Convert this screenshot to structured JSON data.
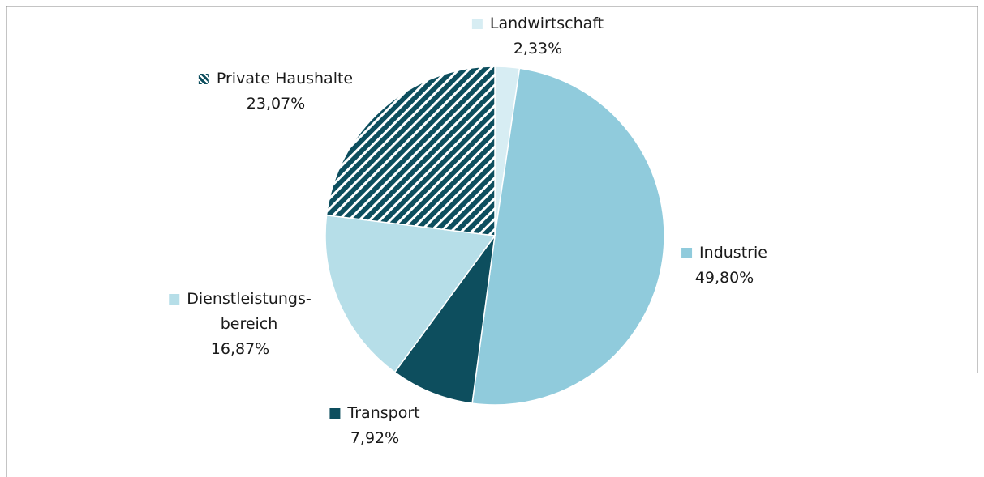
{
  "chart_data": {
    "type": "pie",
    "categories": [
      "Landwirtschaft",
      "Industrie",
      "Transport",
      "Dienstleistungs-\nbereich",
      "Private Haushalte"
    ],
    "values": [
      2.33,
      49.8,
      7.92,
      16.87,
      23.07
    ],
    "value_labels": [
      "2,33%",
      "49,80%",
      "7,92%",
      "16,87%",
      "23,07%"
    ],
    "colors": [
      "#d7edf3",
      "#90cbdc",
      "#0d4e5e",
      "#b6dee8",
      "#0d4e5e"
    ],
    "hatch": [
      false,
      false,
      false,
      false,
      true
    ]
  }
}
